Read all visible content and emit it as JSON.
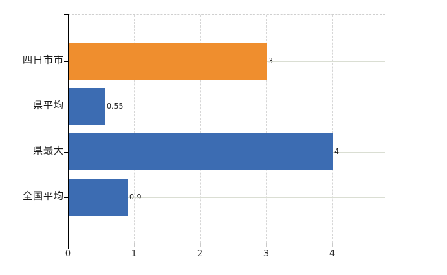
{
  "chart_data": {
    "type": "bar",
    "orientation": "horizontal",
    "categories": [
      "四日市市",
      "県平均",
      "県最大",
      "全国平均"
    ],
    "values": [
      3,
      0.55,
      4,
      0.9
    ],
    "value_labels": [
      "3",
      "0.55",
      "4",
      "0.9"
    ],
    "bar_colors": [
      "#EF8E2E",
      "#3C6CB2",
      "#3C6CB2",
      "#3C6CB2"
    ],
    "x_ticks": [
      "0",
      "1",
      "2",
      "3",
      "4"
    ],
    "xlim": [
      0,
      4.8
    ],
    "title": "",
    "xlabel": "",
    "ylabel": "",
    "legend": null,
    "grid": {
      "vertical": "dashed",
      "horizontal": "solid",
      "top_border": "dashed"
    },
    "colors": {
      "highlight_bar": "#EF8E2E",
      "default_bar": "#3C6CB2",
      "axis": "#000000",
      "grid_vertical": "#D6D6D6",
      "grid_horizontal": "#DADED3",
      "top_border": "#CFCFCF",
      "minor_tick": "#C9C9C9",
      "text": "#1A1A1A"
    }
  }
}
